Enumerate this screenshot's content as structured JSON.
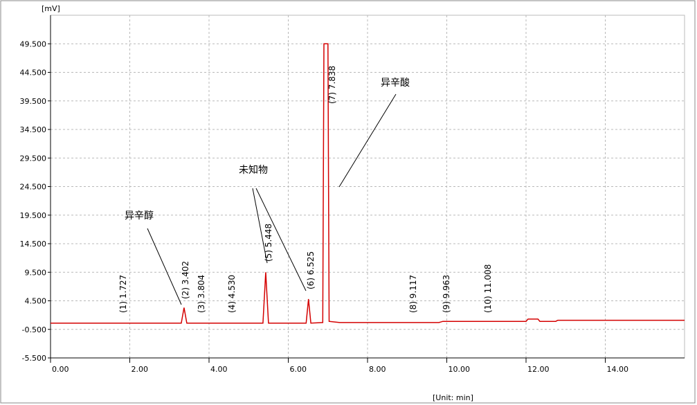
{
  "chart_data": {
    "type": "line",
    "y_label": "[mV]",
    "x_label": "[Unit: min]",
    "xlim": [
      0,
      16
    ],
    "ylim": [
      -5.5,
      54.5
    ],
    "xticks": [
      {
        "value": 0,
        "label": "0.00"
      },
      {
        "value": 2,
        "label": "2.00"
      },
      {
        "value": 4,
        "label": "4.00"
      },
      {
        "value": 6,
        "label": "6.00"
      },
      {
        "value": 8,
        "label": "8.00"
      },
      {
        "value": 10,
        "label": "10.00"
      },
      {
        "value": 12,
        "label": "12.00"
      },
      {
        "value": 14,
        "label": "14.00"
      }
    ],
    "yticks": [
      {
        "value": -5.5,
        "label": "-5.500"
      },
      {
        "value": -0.5,
        "label": "-0.500"
      },
      {
        "value": 4.5,
        "label": "4.500"
      },
      {
        "value": 9.5,
        "label": "9.500"
      },
      {
        "value": 14.5,
        "label": "14.500"
      },
      {
        "value": 19.5,
        "label": "19.500"
      },
      {
        "value": 24.5,
        "label": "24.500"
      },
      {
        "value": 29.5,
        "label": "29.500"
      },
      {
        "value": 34.5,
        "label": "34.500"
      },
      {
        "value": 39.5,
        "label": "39.500"
      },
      {
        "value": 44.5,
        "label": "44.500"
      },
      {
        "value": 49.5,
        "label": "49.500"
      }
    ],
    "grid": true,
    "series": [
      {
        "color": "#d40000",
        "x": [
          0,
          3.3,
          3.37,
          3.44,
          5.36,
          5.43,
          5.5,
          6.45,
          6.51,
          6.57,
          6.87,
          6.9,
          7.0,
          7.03,
          7.3,
          9.8,
          9.9,
          12.0,
          12.05,
          12.3,
          12.35,
          12.75,
          12.8,
          16
        ],
        "values": [
          0.6,
          0.6,
          3.3,
          0.6,
          0.6,
          9.5,
          0.6,
          0.6,
          4.8,
          0.6,
          0.7,
          49.5,
          49.5,
          0.9,
          0.7,
          0.7,
          0.9,
          0.9,
          1.3,
          1.3,
          0.9,
          0.9,
          1.1,
          1.1
        ]
      }
    ],
    "peak_labels": [
      "(1) 1.727",
      "(2) 3.402",
      "(3) 3.804",
      "(4) 4.530",
      "(5) 5.448",
      "(6) 6.525",
      "(7) 7.838",
      "(8) 9.117",
      "(9) 9.963",
      "(10) 11.008"
    ],
    "annotations": [
      "异辛醇",
      "未知物",
      "异辛酸"
    ]
  }
}
